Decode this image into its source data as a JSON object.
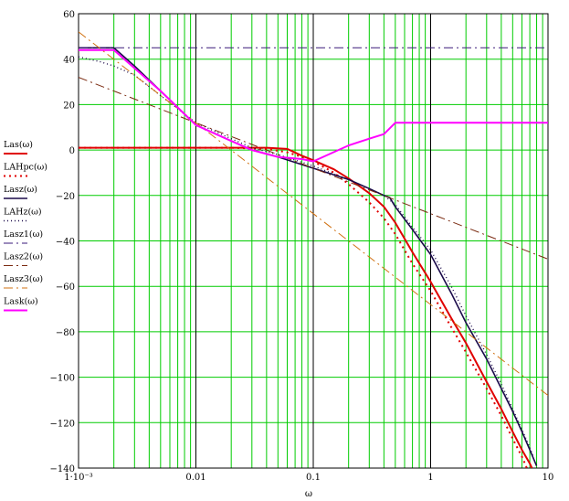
{
  "chart_data": {
    "type": "line",
    "x_scale": "log",
    "xlim": [
      0.001,
      10
    ],
    "ylim": [
      -140,
      60
    ],
    "grid": true,
    "legend_position": "left",
    "xlabel": "ω",
    "x_tick_labels": [
      "1·10⁻³",
      "0.01",
      "0.1",
      "1",
      "10"
    ],
    "x_tick_values": [
      0.001,
      0.01,
      0.1,
      1,
      10
    ],
    "y_tick_values": [
      60,
      40,
      20,
      0,
      -20,
      -40,
      -60,
      -80,
      -100,
      -120,
      -140
    ],
    "y_tick_labels": [
      "60",
      "40",
      "20",
      "0",
      "−20",
      "−40",
      "−60",
      "−80",
      "−100",
      "−120",
      "−140"
    ],
    "colors": {
      "grid_minor": "#00cc00",
      "grid_major": "#000000",
      "frame": "#000000",
      "las": "#e00000",
      "lahpc": "#e00000",
      "lasz": "#1a0a4a",
      "lahz": "#1a0a4a",
      "lasz1": "#3a1a7a",
      "lasz2": "#7a2a10",
      "lasz3": "#d07010",
      "lask": "#ff00ff"
    },
    "series": [
      {
        "name": "Las(ω)",
        "key": "las",
        "color": "#e00000",
        "dash": "",
        "width": 2,
        "x": [
          0.001,
          0.003,
          0.01,
          0.02,
          0.04,
          0.06,
          0.08,
          0.1,
          0.15,
          0.2,
          0.3,
          0.4,
          0.5,
          0.7,
          1.0,
          1.5,
          2.0,
          3.0,
          4.0,
          5.0,
          6.0,
          7.0,
          7.3
        ],
        "y": [
          1,
          1,
          1,
          1,
          1,
          0.5,
          -2.5,
          -4.5,
          -8.5,
          -12.5,
          -19,
          -25,
          -32,
          -45,
          -58,
          -74,
          -85,
          -102,
          -114,
          -124,
          -132,
          -138,
          -140
        ]
      },
      {
        "name": "LAHpc(ω)",
        "key": "lahpc",
        "color": "#e00000",
        "dash": "2,4",
        "width": 2,
        "x": [
          0.001,
          0.003,
          0.01,
          0.02,
          0.04,
          0.06,
          0.08,
          0.1,
          0.15,
          0.2,
          0.3,
          0.4,
          0.5,
          0.7,
          1.0,
          1.5,
          2.0,
          3.0,
          4.0,
          5.0,
          6.0,
          6.6
        ],
        "y": [
          1,
          1,
          1,
          1,
          0.5,
          -1,
          -3,
          -5,
          -10,
          -15,
          -23,
          -30,
          -37,
          -50,
          -62,
          -78,
          -89,
          -105,
          -117,
          -127,
          -135,
          -140
        ]
      },
      {
        "name": "Lasz(ω)",
        "key": "lasz",
        "color": "#1a0a4a",
        "dash": "",
        "width": 1.6,
        "x": [
          0.001,
          0.0015,
          0.002,
          0.003,
          0.005,
          0.01,
          0.02,
          0.03,
          0.05,
          0.1,
          0.2,
          0.3,
          0.4,
          0.45,
          0.5,
          0.7,
          1.0,
          1.5,
          2.0,
          3.0,
          4.0,
          5.0,
          6.0,
          7.0,
          8.0
        ],
        "y": [
          45,
          45,
          45,
          37,
          26,
          11,
          4,
          0,
          -3,
          -8,
          -13,
          -17,
          -20,
          -21,
          -25,
          -35,
          -46,
          -63,
          -76,
          -92,
          -105,
          -115,
          -124,
          -132,
          -139
        ]
      },
      {
        "name": "LAHz(ω)",
        "key": "lahz",
        "color": "#1a0a4a",
        "dash": "1,3",
        "width": 1.4,
        "x": [
          0.001,
          0.0015,
          0.002,
          0.003,
          0.005,
          0.01,
          0.02,
          0.03,
          0.05,
          0.1,
          0.2,
          0.3,
          0.4,
          0.5,
          0.7,
          1.0,
          1.5,
          2.0,
          3.0,
          4.0,
          5.0,
          6.0,
          7.0,
          7.5
        ],
        "y": [
          41,
          39,
          37,
          33,
          24,
          12,
          5,
          1,
          -2,
          -7,
          -13,
          -17,
          -20,
          -24,
          -34,
          -44,
          -60,
          -73,
          -90,
          -103,
          -114,
          -123,
          -131,
          -135
        ]
      },
      {
        "name": "Lasz1(ω)",
        "key": "lasz1",
        "color": "#3a1a7a",
        "dash": "10,4,2,4",
        "width": 1,
        "x": [
          0.001,
          10
        ],
        "y": [
          45,
          45
        ]
      },
      {
        "name": "Lasz2(ω)",
        "key": "lasz2",
        "color": "#7a2a10",
        "dash": "10,4,2,4",
        "width": 1,
        "x": [
          0.001,
          0.1,
          10
        ],
        "y": [
          32,
          -8,
          -48
        ]
      },
      {
        "name": "Lasz3(ω)",
        "key": "lasz3",
        "color": "#d07010",
        "dash": "10,4,2,4",
        "width": 1,
        "x": [
          0.001,
          0.01,
          0.1,
          1,
          10
        ],
        "y": [
          52,
          12,
          -28,
          -68,
          -108
        ]
      },
      {
        "name": "Lask(ω)",
        "key": "lask",
        "color": "#ff00ff",
        "dash": "",
        "width": 2,
        "x": [
          0.001,
          0.0015,
          0.002,
          0.003,
          0.005,
          0.01,
          0.02,
          0.03,
          0.05,
          0.08,
          0.1,
          0.2,
          0.3,
          0.4,
          0.5,
          1,
          10
        ],
        "y": [
          44,
          44,
          44,
          36,
          26,
          11,
          4,
          0,
          -3,
          -4,
          -5,
          2,
          5,
          7,
          12,
          12,
          12
        ]
      }
    ]
  }
}
